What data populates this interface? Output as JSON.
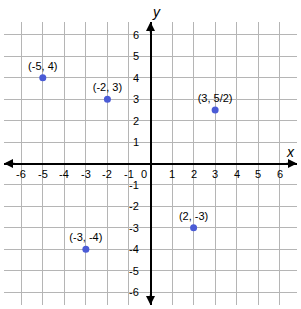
{
  "chart_data": {
    "type": "scatter",
    "x_label": "x",
    "y_label": "y",
    "x": [
      -5,
      -2,
      3,
      -3,
      2
    ],
    "values": [
      4,
      3,
      2.5,
      -4,
      -3
    ],
    "value_labels": [
      "(-5, 4)",
      "(-2, 3)",
      "(3, 5/2)",
      "(-3, -4)",
      "(2, -3)"
    ],
    "data_labels": true,
    "color": "#4a5bd6",
    "marker": "circle",
    "xlim": [
      -6.8,
      6.8
    ],
    "ylim": [
      -6.6,
      6.6
    ],
    "xticks": [
      -6,
      -5,
      -4,
      -3,
      -2,
      -1,
      0,
      1,
      2,
      3,
      4,
      5,
      6
    ],
    "yticks": [
      -6,
      -5,
      -4,
      -3,
      -2,
      -1,
      1,
      2,
      3,
      4,
      5,
      6
    ],
    "grid": true
  }
}
